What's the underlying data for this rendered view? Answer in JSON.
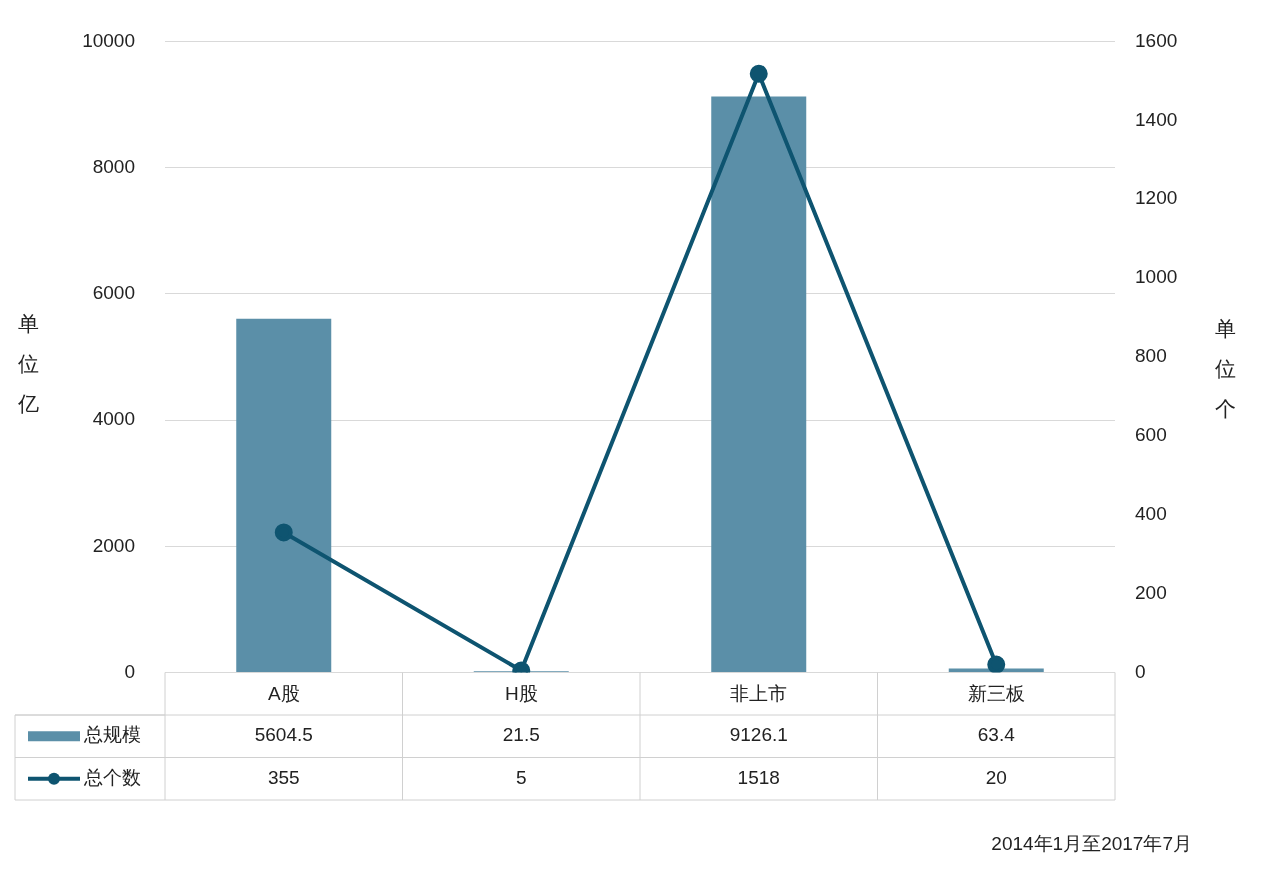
{
  "chart_data": {
    "type": "bar",
    "categories": [
      "A股",
      "H股",
      "非上市",
      "新三板"
    ],
    "series": [
      {
        "name": "总规模",
        "color": "#5b8fa8",
        "values": [
          5604.5,
          21.5,
          9126.1,
          63.4
        ]
      },
      {
        "name": "总个数",
        "type": "line",
        "axis": "y2",
        "color": "#0e5470",
        "values": [
          355,
          5,
          1518,
          20
        ]
      }
    ],
    "ylabel": "单位亿",
    "y2label": "单位个",
    "ylim": [
      0,
      10000
    ],
    "yticks": [
      0,
      2000,
      4000,
      6000,
      8000,
      10000
    ],
    "y2lim": [
      0,
      1600
    ],
    "y2ticks": [
      0,
      200,
      400,
      600,
      800,
      1000,
      1200,
      1400,
      1600
    ],
    "grid": "y",
    "legend": "bottom",
    "data_labels": true,
    "marker": "circle",
    "line_style": "solid",
    "annotations": [
      "2014年1月至2017年7月"
    ]
  }
}
